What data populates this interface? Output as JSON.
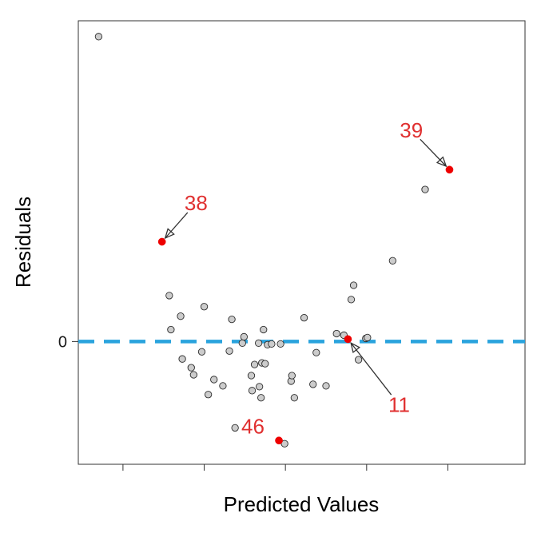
{
  "chart_data": {
    "type": "scatter",
    "xlabel": "Predicted Values",
    "ylabel": "Residuals",
    "xlim": [
      0.3,
      5.8
    ],
    "ylim": [
      -1.55,
      4.05
    ],
    "x_ticks": [
      {
        "value": 0.85,
        "label": ""
      },
      {
        "value": 1.85,
        "label": ""
      },
      {
        "value": 2.85,
        "label": ""
      },
      {
        "value": 3.85,
        "label": ""
      },
      {
        "value": 4.85,
        "label": ""
      }
    ],
    "y_ticks": [
      {
        "value": 0,
        "label": "0"
      }
    ],
    "reference_line": {
      "y": 0,
      "style": "dashed",
      "color": "#29a3dd"
    },
    "colors": {
      "point_fill": "#cccccc",
      "point_stroke": "#2b2b2b",
      "highlight": "#ee0000",
      "callout_text": "#e03030",
      "reference_line": "#29a3dd"
    },
    "points": [
      {
        "x": 0.55,
        "y": 3.85
      },
      {
        "x": 1.42,
        "y": 0.58
      },
      {
        "x": 1.44,
        "y": 0.15
      },
      {
        "x": 1.56,
        "y": 0.32
      },
      {
        "x": 1.58,
        "y": -0.22
      },
      {
        "x": 1.69,
        "y": -0.33
      },
      {
        "x": 1.72,
        "y": -0.42
      },
      {
        "x": 1.82,
        "y": -0.13
      },
      {
        "x": 1.85,
        "y": 0.44
      },
      {
        "x": 1.9,
        "y": -0.67
      },
      {
        "x": 1.97,
        "y": -0.48
      },
      {
        "x": 2.08,
        "y": -0.56
      },
      {
        "x": 2.16,
        "y": -0.12
      },
      {
        "x": 2.19,
        "y": 0.28
      },
      {
        "x": 2.23,
        "y": -1.09
      },
      {
        "x": 2.32,
        "y": -0.02
      },
      {
        "x": 2.34,
        "y": 0.06
      },
      {
        "x": 2.43,
        "y": -0.43
      },
      {
        "x": 2.44,
        "y": -0.62
      },
      {
        "x": 2.47,
        "y": -0.29
      },
      {
        "x": 2.52,
        "y": -0.02
      },
      {
        "x": 2.53,
        "y": -0.57
      },
      {
        "x": 2.55,
        "y": -0.71
      },
      {
        "x": 2.56,
        "y": -0.27
      },
      {
        "x": 2.58,
        "y": 0.15
      },
      {
        "x": 2.6,
        "y": -0.28
      },
      {
        "x": 2.63,
        "y": -0.04
      },
      {
        "x": 2.68,
        "y": -0.03
      },
      {
        "x": 2.79,
        "y": -0.03
      },
      {
        "x": 2.84,
        "y": -1.29
      },
      {
        "x": 2.92,
        "y": -0.5
      },
      {
        "x": 2.93,
        "y": -0.43
      },
      {
        "x": 2.96,
        "y": -0.71
      },
      {
        "x": 3.08,
        "y": 0.3
      },
      {
        "x": 3.19,
        "y": -0.54
      },
      {
        "x": 3.23,
        "y": -0.14
      },
      {
        "x": 3.35,
        "y": -0.56
      },
      {
        "x": 3.48,
        "y": 0.1
      },
      {
        "x": 3.57,
        "y": 0.08
      },
      {
        "x": 3.66,
        "y": 0.53
      },
      {
        "x": 3.69,
        "y": 0.71
      },
      {
        "x": 3.75,
        "y": -0.23
      },
      {
        "x": 3.84,
        "y": 0.04
      },
      {
        "x": 3.86,
        "y": 0.05
      },
      {
        "x": 4.17,
        "y": 1.02
      },
      {
        "x": 4.57,
        "y": 1.92
      }
    ],
    "highlighted": [
      {
        "label": "38",
        "x": 1.33,
        "y": 1.26
      },
      {
        "label": "39",
        "x": 4.87,
        "y": 2.17
      },
      {
        "label": "11",
        "x": 3.62,
        "y": 0.03
      },
      {
        "label": "46",
        "x": 2.77,
        "y": -1.25
      }
    ],
    "callouts": [
      {
        "label": "38",
        "target_id": "38",
        "text_x": 1.75,
        "text_y": 1.75,
        "arrow": true
      },
      {
        "label": "39",
        "target_id": "39",
        "text_x": 4.4,
        "text_y": 2.67,
        "arrow": true
      },
      {
        "label": "11",
        "target_id": "11",
        "text_x": 4.25,
        "text_y": -0.8,
        "arrow": true
      },
      {
        "label": "46",
        "target_id": "46",
        "text_x": 2.45,
        "text_y": -1.07,
        "arrow": false
      }
    ]
  }
}
